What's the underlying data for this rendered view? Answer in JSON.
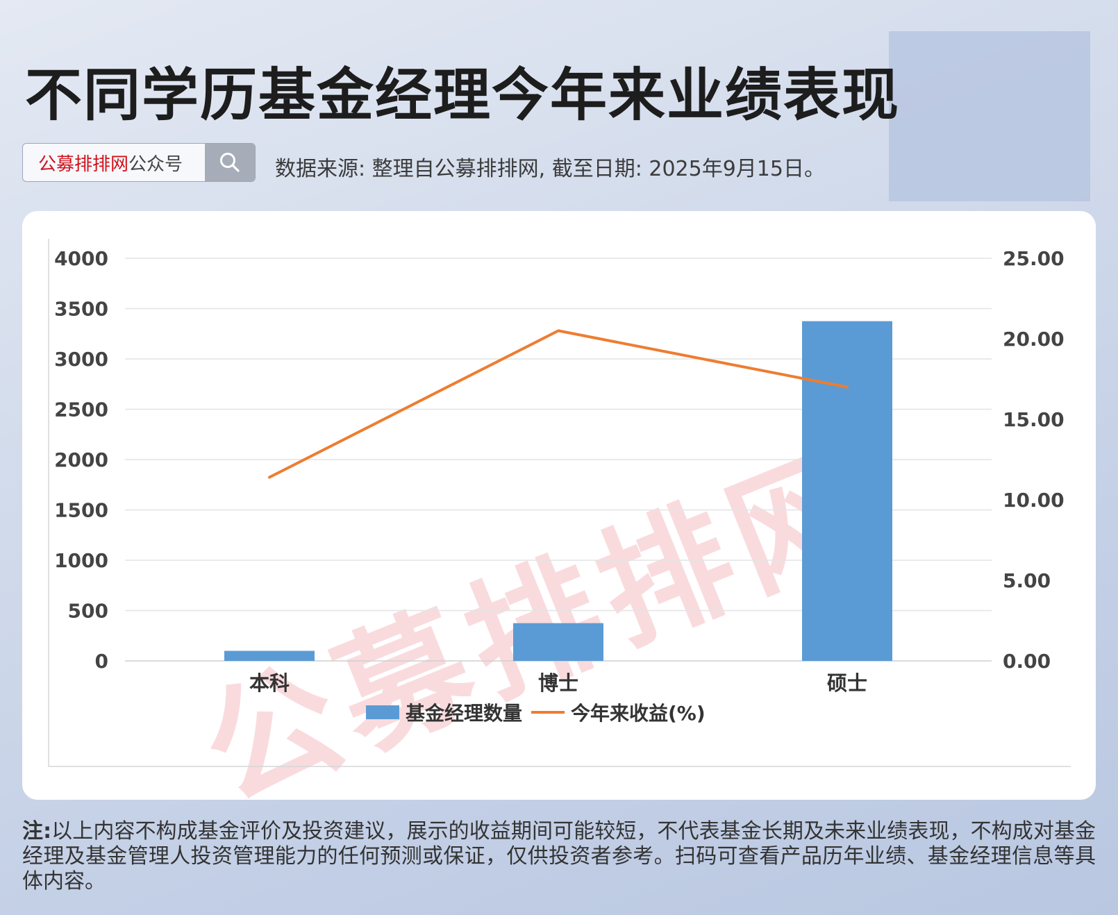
{
  "header": {
    "title": "不同学历基金经理今年来业绩表现",
    "brand_name": "公募排排网",
    "brand_suffix": "公众号",
    "source": "数据来源: 整理自公募排排网, 截至日期: 2025年9月15日。"
  },
  "watermark": "公募排排网",
  "chart_data": {
    "type": "bar+line",
    "categories": [
      "本科",
      "博士",
      "硕士"
    ],
    "series": [
      {
        "name": "基金经理数量",
        "type": "bar",
        "axis": "left",
        "values": [
          100,
          375,
          3375
        ],
        "color": "#5b9bd5"
      },
      {
        "name": "今年来收益(%)",
        "type": "line",
        "axis": "right",
        "values": [
          11.4,
          20.5,
          17.0
        ],
        "color": "#ed7d31"
      }
    ],
    "y_left": {
      "min": 0,
      "max": 4000,
      "ticks": [
        "0",
        "500",
        "1000",
        "1500",
        "2000",
        "2500",
        "3000",
        "3500",
        "4000"
      ]
    },
    "y_right": {
      "min": 0,
      "max": 25,
      "ticks": [
        "0.00",
        "5.00",
        "10.00",
        "15.00",
        "20.00",
        "25.00"
      ]
    },
    "grid": true,
    "legend_position": "bottom"
  },
  "note": {
    "label": "注:",
    "text": "以上内容不构成基金评价及投资建议，展示的收益期间可能较短，不代表基金长期及未来业绩表现，不构成对基金经理及基金管理人投资管理能力的任何预测或保证，仅供投资者参考。扫码可查看产品历年业绩、基金经理信息等具体内容。"
  }
}
